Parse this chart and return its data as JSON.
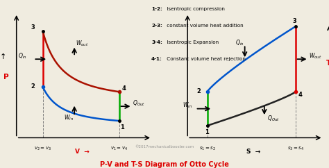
{
  "title": "P-V and T-S Diagram of Otto Cycle",
  "title_color": "#dd0000",
  "bg_color": "#f0ece0",
  "legend_lines": [
    [
      "1-2:",
      " Isentropic compression"
    ],
    [
      "2-3:",
      " constant volume heat addition"
    ],
    [
      "3-4:",
      " Isentropic Expansion"
    ],
    [
      "4-1:",
      " Constant volume heat rejection"
    ]
  ],
  "watermark": "©2017mechanicalbooster.com",
  "pv": {
    "v1": 0.78,
    "p1": 0.14,
    "v2": 0.2,
    "p2": 0.42,
    "v3": 0.2,
    "p3": 0.88,
    "v4": 0.78,
    "p4": 0.38,
    "color_12": "#0055cc",
    "color_23": "#dd0000",
    "color_34": "#aa1100",
    "color_41": "#00aa00",
    "gamma": 1.4
  },
  "ts": {
    "s1": 0.15,
    "t1": 0.1,
    "s2": 0.15,
    "t2": 0.38,
    "s3": 0.82,
    "t3": 0.92,
    "s4": 0.82,
    "t4": 0.38,
    "color_12": "#00aa00",
    "color_23": "#0055cc",
    "color_34": "#dd0000",
    "color_41": "#222222"
  }
}
